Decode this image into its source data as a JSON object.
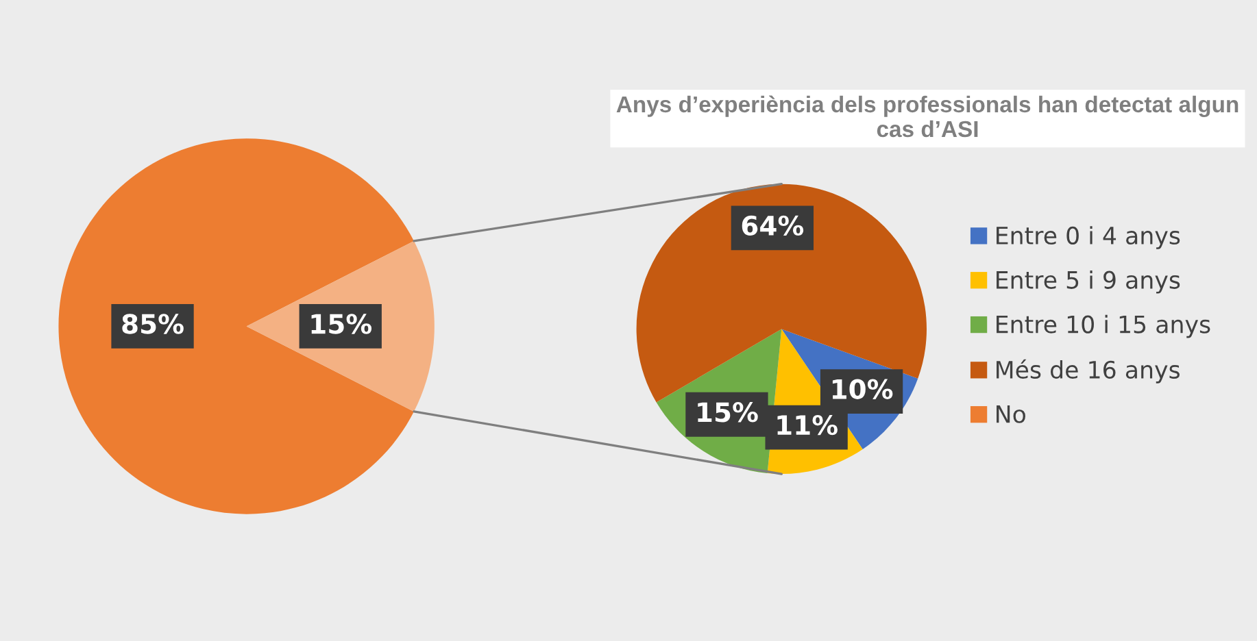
{
  "chart_data": [
    {
      "type": "pie",
      "categories": [
        "No",
        null
      ],
      "values": [
        85,
        15
      ],
      "colors": [
        "#ed7d31",
        "#f4b183"
      ],
      "value_labels": [
        "85%",
        "15%"
      ],
      "legend": "right"
    },
    {
      "type": "pie",
      "title": "Anys d’experiència dels professionals han detectat algun cas d’ASI",
      "categories": [
        "Entre 0 i 4 anys",
        "Entre 5 i 9 anys",
        "Entre 10 i 15 anys",
        "Més de 16 anys"
      ],
      "values": [
        10,
        11,
        15,
        64
      ],
      "colors": [
        "#4472c4",
        "#ffc000",
        "#70ad47",
        "#c55a11"
      ],
      "value_labels": [
        "10%",
        "11%",
        "15%",
        "64%"
      ],
      "legend": "right"
    }
  ]
}
